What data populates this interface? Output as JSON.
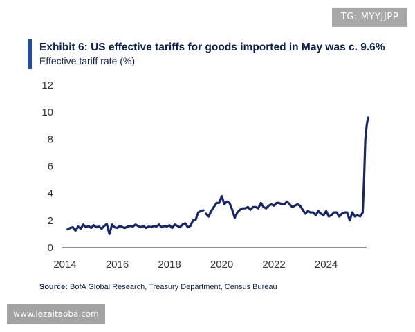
{
  "badge": {
    "text": "TG: MYYJJPP"
  },
  "watermark": {
    "text": "www.lezaitaoba.com"
  },
  "source": {
    "label": "Source:",
    "text": " BofA Global Research, Treasury Department, Census Bureau"
  },
  "colors": {
    "line": "#17266b",
    "title": "#0b1f52",
    "accent_bar": "#1f4e9c",
    "badge_bg": "#a8a8a8"
  },
  "chart_data": {
    "type": "line",
    "title": "Exhibit 6: US effective tariffs for goods imported in May was c. 9.6%",
    "ylabel": "Effective tariff rate (%)",
    "xlabel": "",
    "xlim": [
      2014,
      2025.6
    ],
    "ylim": [
      0,
      12
    ],
    "x_ticks": [
      2014,
      2016,
      2018,
      2020,
      2022,
      2024
    ],
    "y_ticks": [
      0,
      2,
      4,
      6,
      8,
      10,
      12
    ],
    "grid": false,
    "series": [
      {
        "name": "Effective tariff rate",
        "segments": [
          {
            "x": [
              2014.1,
              2014.2,
              2014.3,
              2014.4,
              2014.5,
              2014.6,
              2014.7,
              2014.8,
              2014.9,
              2015.0,
              2015.1,
              2015.2,
              2015.3,
              2015.4,
              2015.5,
              2015.6,
              2015.7,
              2015.8,
              2015.9,
              2016.0,
              2016.1,
              2016.2,
              2016.3,
              2016.4,
              2016.5,
              2016.6,
              2016.7,
              2016.8,
              2016.9,
              2017.0,
              2017.1,
              2017.2,
              2017.3,
              2017.4,
              2017.5,
              2017.6,
              2017.7,
              2017.8,
              2017.9,
              2018.0,
              2018.1,
              2018.2,
              2018.3,
              2018.4,
              2018.5,
              2018.6,
              2018.7,
              2018.8,
              2018.9
            ],
            "y": [
              1.35,
              1.45,
              1.5,
              1.25,
              1.55,
              1.4,
              1.7,
              1.5,
              1.6,
              1.45,
              1.65,
              1.5,
              1.55,
              1.4,
              1.6,
              1.75,
              1.0,
              1.7,
              1.5,
              1.45,
              1.6,
              1.5,
              1.45,
              1.55,
              1.6,
              1.55,
              1.7,
              1.6,
              1.5,
              1.6,
              1.45,
              1.55,
              1.5,
              1.6,
              1.55,
              1.7,
              1.5,
              1.6,
              1.55,
              1.65,
              1.45,
              1.7,
              1.6,
              1.5,
              1.7,
              1.8,
              1.5,
              1.6,
              2.0
            ]
          },
          {
            "x": [
              2018.9,
              2019.0,
              2019.1,
              2019.2,
              2019.3
            ],
            "y": [
              2.0,
              2.05,
              2.6,
              2.7,
              2.75
            ]
          },
          {
            "x": [
              2019.4,
              2019.5,
              2019.6,
              2019.7,
              2019.8,
              2019.9,
              2020.0,
              2020.1,
              2020.2,
              2020.3,
              2020.4,
              2020.5,
              2020.6,
              2020.7,
              2020.8,
              2020.9,
              2021.0,
              2021.1,
              2021.2,
              2021.3,
              2021.4,
              2021.5,
              2021.6,
              2021.7,
              2021.8,
              2021.9,
              2022.0,
              2022.1,
              2022.2,
              2022.3,
              2022.4,
              2022.5,
              2022.6,
              2022.7,
              2022.8,
              2022.9,
              2023.0,
              2023.1,
              2023.2,
              2023.3,
              2023.4,
              2023.5,
              2023.6,
              2023.7,
              2023.8,
              2023.9,
              2024.0,
              2024.1,
              2024.2,
              2024.3,
              2024.4,
              2024.5,
              2024.6,
              2024.7,
              2024.8,
              2024.9,
              2025.0,
              2025.1,
              2025.2,
              2025.3,
              2025.4
            ],
            "y": [
              2.5,
              2.3,
              2.7,
              3.0,
              3.3,
              3.3,
              3.8,
              3.2,
              3.4,
              3.3,
              2.8,
              2.2,
              2.6,
              2.8,
              2.9,
              2.9,
              3.0,
              2.8,
              3.0,
              3.0,
              2.9,
              3.3,
              3.0,
              2.9,
              3.1,
              3.2,
              3.1,
              3.3,
              3.3,
              3.2,
              3.2,
              3.4,
              3.2,
              3.0,
              3.1,
              3.2,
              3.1,
              2.8,
              2.5,
              2.7,
              2.6,
              2.6,
              2.4,
              2.7,
              2.5,
              2.4,
              2.7,
              2.3,
              2.4,
              2.6,
              2.6,
              2.3,
              2.5,
              2.6,
              2.6,
              2.0,
              2.6,
              2.3,
              2.4,
              2.3,
              2.6
            ]
          },
          {
            "x": [
              2025.4,
              2025.45,
              2025.5,
              2025.55,
              2025.6
            ],
            "y": [
              2.6,
              5.0,
              8.0,
              9.0,
              9.6
            ]
          }
        ]
      }
    ]
  }
}
